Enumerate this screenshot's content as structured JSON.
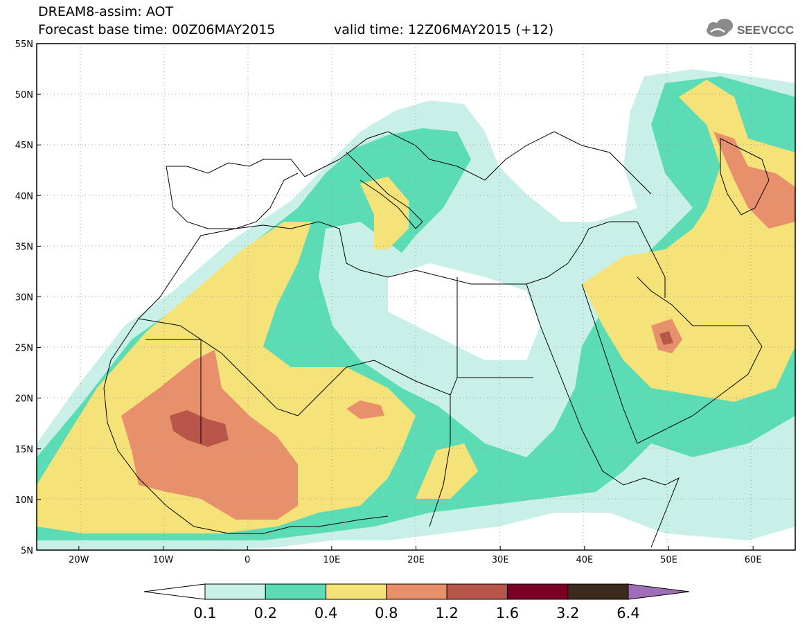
{
  "header": {
    "title": "DREAM8-assim: AOT",
    "base_time": "Forecast base time: 00Z06MAY2015",
    "valid_time": "valid time: 12Z06MAY2015 (+12)",
    "logo_text": "SEEVCCC"
  },
  "map": {
    "lon_range": [
      -25,
      65
    ],
    "lat_range": [
      5,
      55
    ],
    "lat_labels": [
      "55N",
      "50N",
      "45N",
      "40N",
      "35N",
      "30N",
      "25N",
      "20N",
      "15N",
      "10N",
      "5N"
    ],
    "lon_labels": [
      "20W",
      "10W",
      "0",
      "10E",
      "20E",
      "30E",
      "40E",
      "50E",
      "60E"
    ]
  },
  "colorbar": {
    "levels": [
      "0.1",
      "0.2",
      "0.4",
      "0.8",
      "1.2",
      "1.6",
      "3.2",
      "6.4"
    ],
    "colors": [
      "#ffffff",
      "#c9f0e8",
      "#5cdcb4",
      "#f5e37a",
      "#e8906c",
      "#b8564a",
      "#7a0026",
      "#3c2a1c",
      "#9e6fb6"
    ]
  }
}
